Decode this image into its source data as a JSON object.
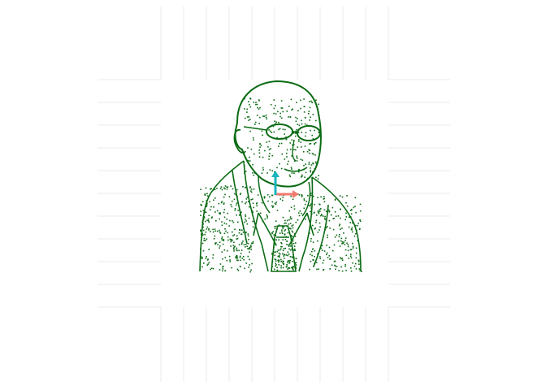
{
  "scene": {
    "subject": "stippled-portrait",
    "colors": {
      "background": "#ffffff",
      "grid": "#ebebeb",
      "stipple": "#0b6b14",
      "axis_x": "#f07a6e",
      "axis_y": "#1ab5bf"
    },
    "icons": [
      "axis-x-arrow-icon",
      "axis-y-arrow-icon"
    ]
  }
}
